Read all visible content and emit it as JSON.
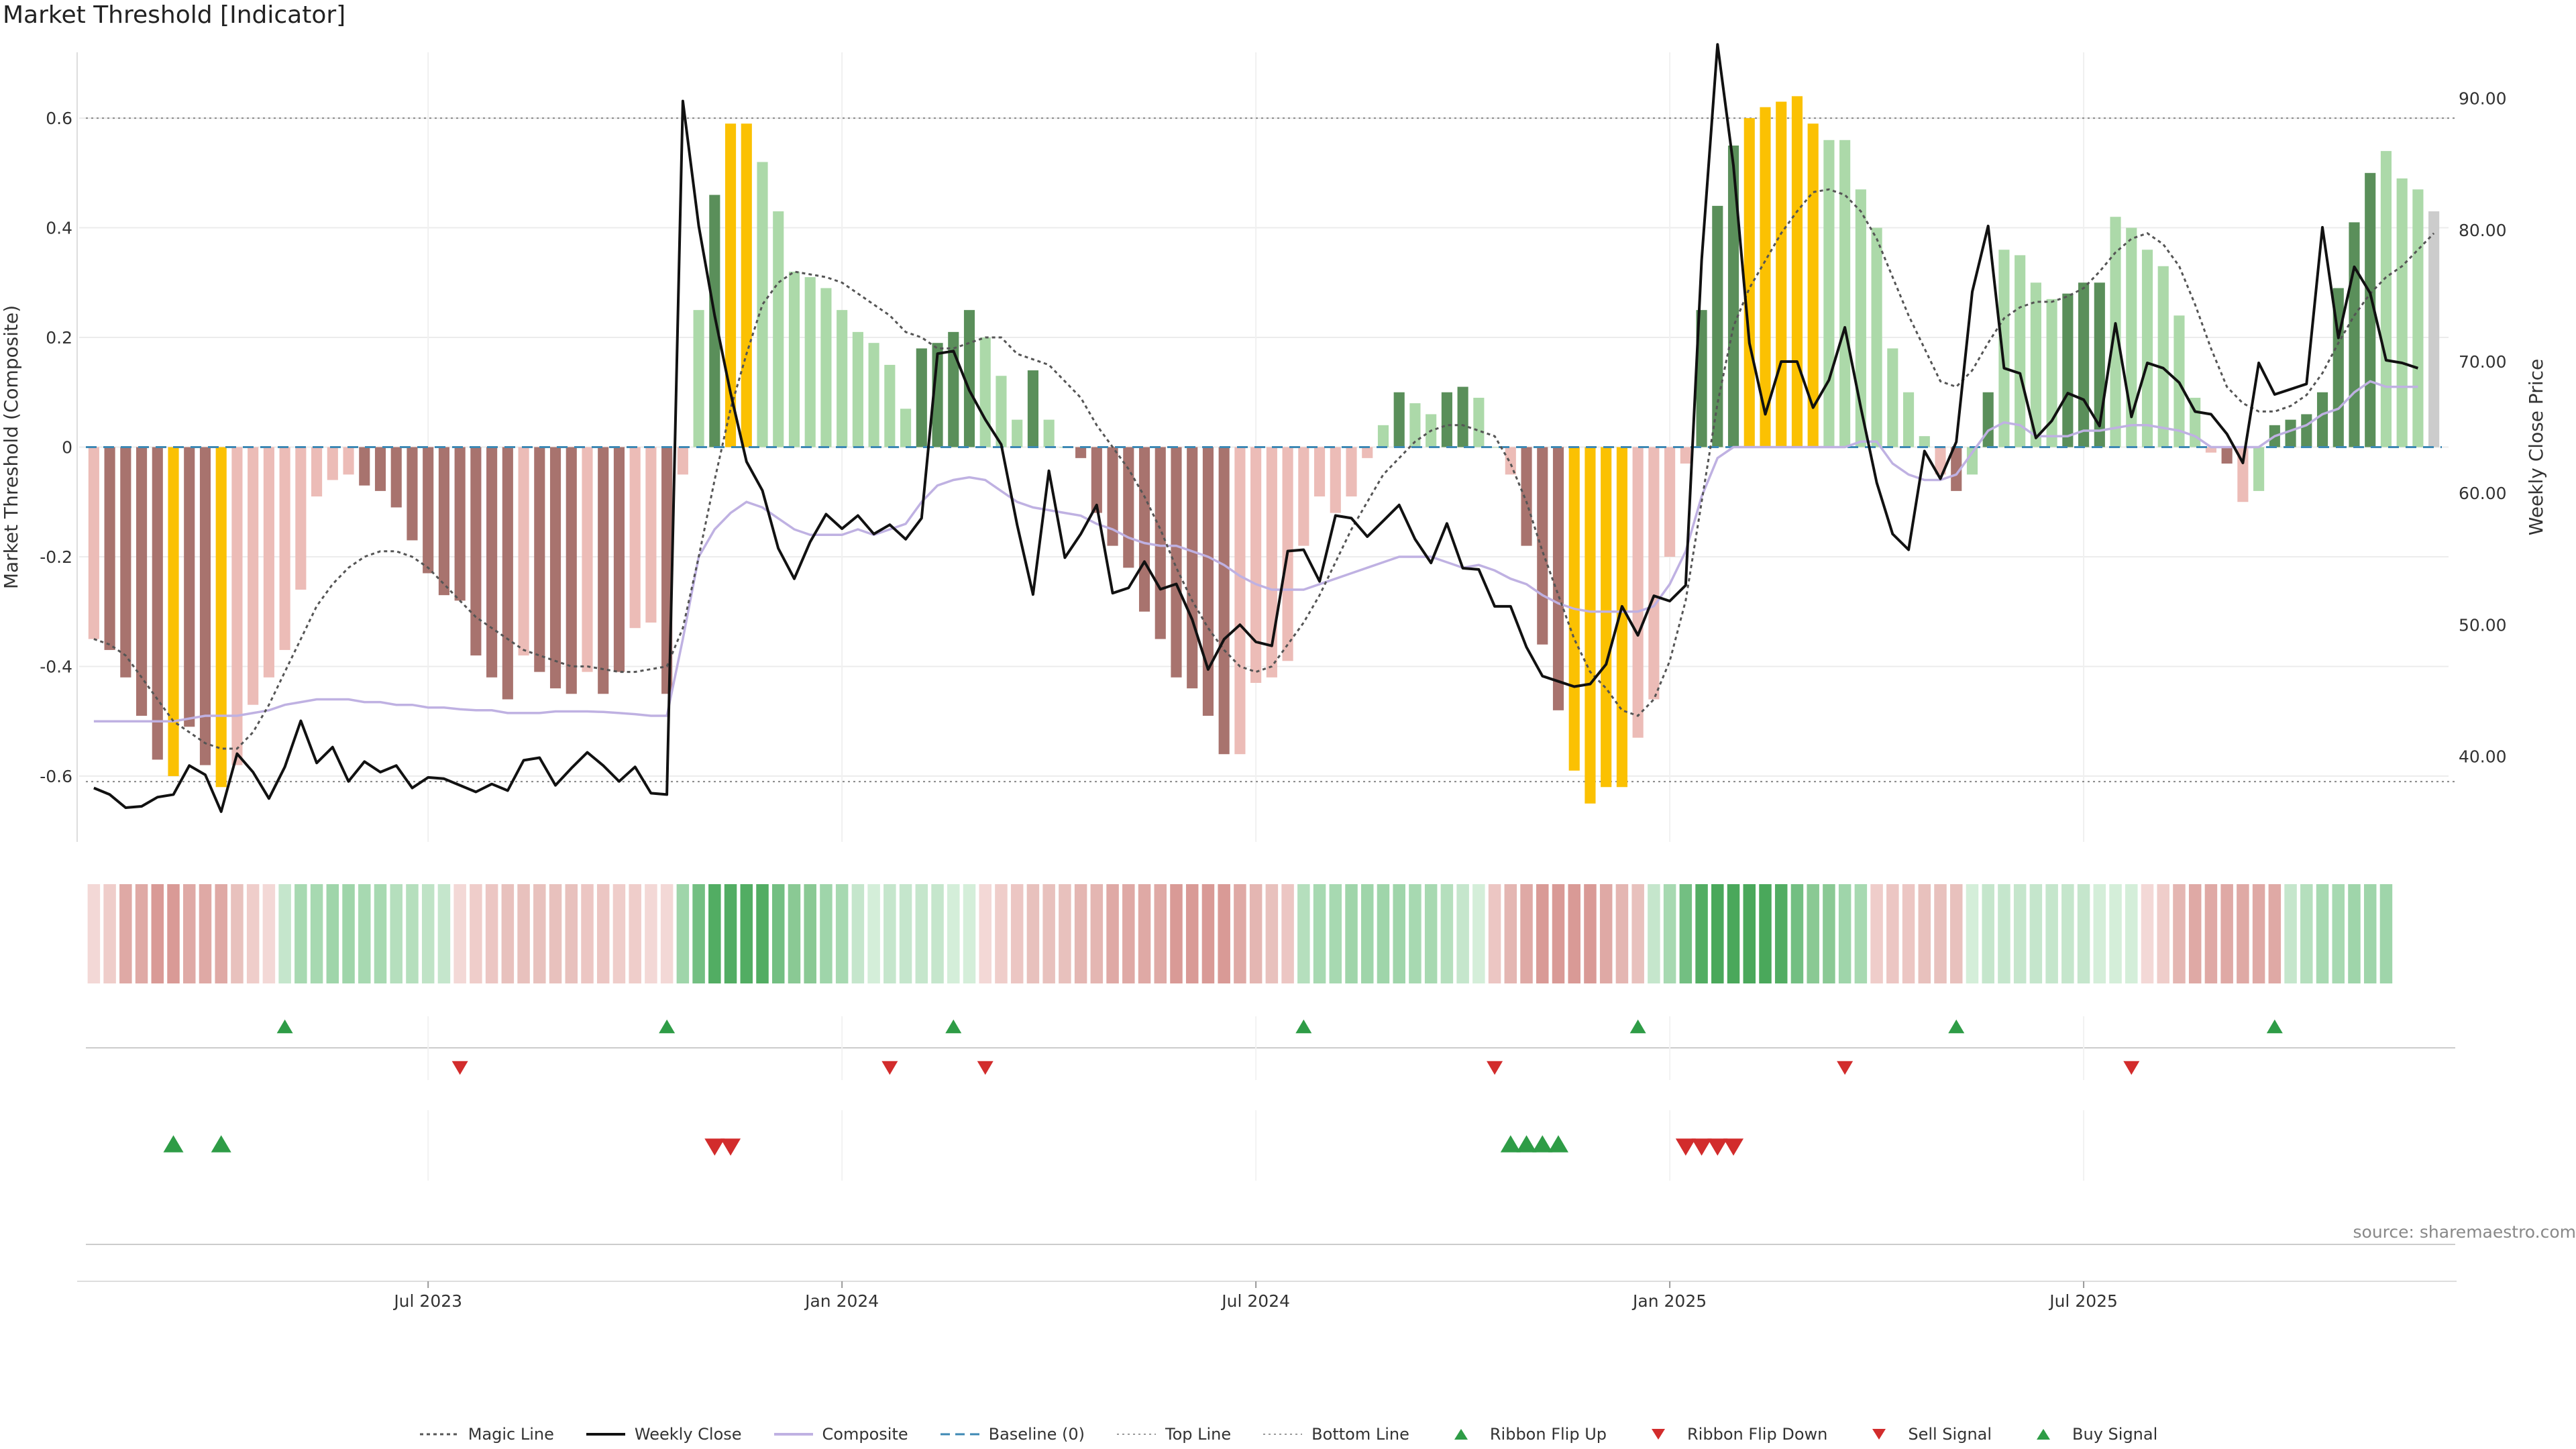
{
  "title": "Market Threshold [Indicator]",
  "source": "source: sharemaestro.com",
  "colors": {
    "dark_green": "#5a8f5a",
    "light_green": "#acd9a9",
    "dark_red": "#a8736e",
    "light_red": "#ecbcb7",
    "yellow": "#fbc102",
    "close": "#111111",
    "composite": "#bfb1e2",
    "magic": "#555555",
    "baseline": "#3d88b4",
    "up_marker": "#2e9c46",
    "down_marker": "#d22c2c"
  },
  "legend": [
    {
      "label": "Magic Line",
      "icon": "dotted-line"
    },
    {
      "label": "Weekly Close",
      "icon": "solid-black-line"
    },
    {
      "label": "Composite",
      "icon": "solid-lavender-line"
    },
    {
      "label": "Baseline (0)",
      "icon": "dashed-blue-line"
    },
    {
      "label": "Top Line",
      "icon": "dotted-gray-line"
    },
    {
      "label": "Bottom Line",
      "icon": "dotted-gray-line"
    },
    {
      "label": "Ribbon Flip Up",
      "icon": "green-up-triangle"
    },
    {
      "label": "Ribbon Flip Down",
      "icon": "red-down-triangle"
    },
    {
      "label": "Sell Signal",
      "icon": "red-down-triangle"
    },
    {
      "label": "Buy Signal",
      "icon": "green-up-triangle"
    }
  ],
  "chart_data": {
    "type": "bar",
    "ylabel": "Market Threshold (Composite)",
    "y2label": "Weekly Close Price",
    "ylim": [
      -0.72,
      0.72
    ],
    "y2lim": [
      33.5,
      93.5
    ],
    "yticks": [
      0.6,
      0.4,
      0.2,
      0,
      -0.2,
      -0.4,
      -0.6
    ],
    "ytick_labels": [
      "0.6",
      "0.4",
      "0.2",
      "0",
      "-0.2",
      "-0.4",
      "-0.6"
    ],
    "y2ticks": [
      90,
      80,
      70,
      60,
      50,
      40
    ],
    "y2tick_labels": [
      "90.00",
      "80.00",
      "70.00",
      "60.00",
      "50.00",
      "40.00"
    ],
    "xticks": [
      {
        "label": "Jul 2023",
        "week": 21.5
      },
      {
        "label": "Jan 2024",
        "week": 47.5
      },
      {
        "label": "Jul 2024",
        "week": 73.5
      },
      {
        "label": "Jan 2025",
        "week": 99.5
      },
      {
        "label": "Jul 2025",
        "week": 125.5
      }
    ],
    "top_line": 0.6,
    "bottom_line": -0.61,
    "grid": true,
    "legend_position": "bottom",
    "composite_bars": [
      -0.35,
      -0.37,
      -0.42,
      -0.49,
      -0.57,
      -0.6,
      -0.51,
      -0.58,
      -0.62,
      -0.58,
      -0.47,
      -0.42,
      -0.37,
      -0.26,
      -0.09,
      -0.06,
      -0.05,
      -0.07,
      -0.08,
      -0.11,
      -0.17,
      -0.23,
      -0.27,
      -0.28,
      -0.38,
      -0.42,
      -0.46,
      -0.38,
      -0.41,
      -0.44,
      -0.45,
      -0.41,
      -0.45,
      -0.41,
      -0.33,
      -0.32,
      -0.45,
      -0.05,
      0.25,
      0.46,
      0.59,
      0.59,
      0.52,
      0.43,
      0.32,
      0.31,
      0.29,
      0.25,
      0.21,
      0.19,
      0.15,
      0.07,
      0.18,
      0.19,
      0.21,
      0.25,
      0.2,
      0.13,
      0.05,
      0.14,
      0.05,
      0.0,
      -0.02,
      -0.12,
      -0.18,
      -0.22,
      -0.3,
      -0.35,
      -0.42,
      -0.44,
      -0.49,
      -0.56,
      -0.56,
      -0.43,
      -0.42,
      -0.39,
      -0.18,
      -0.09,
      -0.12,
      -0.09,
      -0.02,
      0.04,
      0.1,
      0.08,
      0.06,
      0.1,
      0.11,
      0.09,
      0.0,
      -0.05,
      -0.18,
      -0.36,
      -0.48,
      -0.59,
      -0.65,
      -0.62,
      -0.62,
      -0.53,
      -0.46,
      -0.2,
      -0.03,
      0.25,
      0.44,
      0.55,
      0.6,
      0.62,
      0.63,
      0.64,
      0.59,
      0.56,
      0.56,
      0.47,
      0.4,
      0.18,
      0.1,
      0.02,
      -0.05,
      -0.08,
      -0.05,
      0.1,
      0.36,
      0.35,
      0.3,
      0.27,
      0.28,
      0.3,
      0.3,
      0.42,
      0.4,
      0.36,
      0.33,
      0.24,
      0.09,
      -0.01,
      -0.03,
      -0.1,
      -0.08,
      0.04,
      0.05,
      0.06,
      0.1,
      0.29,
      0.41,
      0.5,
      0.54,
      0.49,
      0.47,
      0.43
    ],
    "bar_colors": [
      "light_red",
      "dark_red",
      "dark_red",
      "dark_red",
      "dark_red",
      "yellow",
      "dark_red",
      "dark_red",
      "yellow",
      "light_red",
      "light_red",
      "light_red",
      "light_red",
      "light_red",
      "light_red",
      "light_red",
      "light_red",
      "dark_red",
      "dark_red",
      "dark_red",
      "dark_red",
      "dark_red",
      "dark_red",
      "dark_red",
      "dark_red",
      "dark_red",
      "dark_red",
      "light_red",
      "dark_red",
      "dark_red",
      "dark_red",
      "light_red",
      "dark_red",
      "dark_red",
      "light_red",
      "light_red",
      "dark_red",
      "light_red",
      "light_green",
      "dark_green",
      "yellow",
      "yellow",
      "light_green",
      "light_green",
      "light_green",
      "light_green",
      "light_green",
      "light_green",
      "light_green",
      "light_green",
      "light_green",
      "light_green",
      "dark_green",
      "dark_green",
      "dark_green",
      "dark_green",
      "light_green",
      "light_green",
      "light_green",
      "dark_green",
      "light_green",
      "light_green",
      "dark_red",
      "dark_red",
      "dark_red",
      "dark_red",
      "dark_red",
      "dark_red",
      "dark_red",
      "dark_red",
      "dark_red",
      "dark_red",
      "light_red",
      "light_red",
      "light_red",
      "light_red",
      "light_red",
      "light_red",
      "light_red",
      "light_red",
      "light_red",
      "light_green",
      "dark_green",
      "light_green",
      "light_green",
      "dark_green",
      "dark_green",
      "light_green",
      "light_green",
      "light_red",
      "dark_red",
      "dark_red",
      "dark_red",
      "yellow",
      "yellow",
      "yellow",
      "yellow",
      "light_red",
      "light_red",
      "light_red",
      "light_red",
      "dark_green",
      "dark_green",
      "dark_green",
      "yellow",
      "yellow",
      "yellow",
      "yellow",
      "yellow",
      "light_green",
      "light_green",
      "light_green",
      "light_green",
      "light_green",
      "light_green",
      "light_green",
      "light_red",
      "dark_red",
      "light_green",
      "dark_green",
      "light_green",
      "light_green",
      "light_green",
      "light_green",
      "dark_green",
      "dark_green",
      "dark_green",
      "light_green",
      "light_green",
      "light_green",
      "light_green",
      "light_green",
      "light_green",
      "light_red",
      "dark_red",
      "light_red",
      "light_green",
      "dark_green",
      "dark_green",
      "dark_green",
      "dark_green",
      "dark_green",
      "dark_green",
      "dark_green",
      "light_green",
      "light_green",
      "light_green"
    ],
    "weekly_close": [
      37.6,
      37.1,
      36.1,
      36.2,
      36.9,
      37.1,
      39.3,
      38.6,
      35.8,
      40.2,
      38.8,
      36.8,
      39.2,
      42.7,
      39.5,
      40.7,
      38.1,
      39.6,
      38.8,
      39.3,
      37.6,
      38.4,
      38.3,
      37.8,
      37.3,
      37.9,
      37.4,
      39.7,
      39.9,
      37.8,
      39.1,
      40.3,
      39.3,
      38.1,
      39.2,
      37.2,
      37.1,
      89.8,
      80.3,
      73.5,
      67.6,
      62.4,
      60.2,
      55.8,
      53.5,
      56.3,
      58.4,
      57.3,
      58.3,
      56.9,
      57.6,
      56.5,
      58.1,
      70.6,
      70.8,
      67.8,
      65.6,
      63.7,
      57.6,
      52.3,
      61.7,
      55.1,
      56.9,
      59.1,
      52.4,
      52.8,
      54.8,
      52.7,
      53.1,
      50.4,
      46.6,
      48.9,
      50.0,
      48.7,
      48.4,
      55.6,
      55.7,
      53.3,
      58.3,
      58.1,
      56.7,
      57.9,
      59.1,
      56.5,
      54.7,
      57.7,
      54.3,
      54.2,
      51.4,
      51.4,
      48.3,
      46.1,
      45.7,
      45.3,
      45.5,
      47.0,
      51.4,
      49.2,
      52.2,
      51.8,
      53.0,
      77.7,
      94.1,
      84.9,
      71.4,
      66.0,
      70.0,
      70.0,
      66.5,
      68.6,
      72.6,
      66.5,
      60.8,
      56.9,
      55.7,
      63.2,
      61.1,
      63.9,
      75.3,
      80.3,
      69.5,
      69.1,
      64.2,
      65.5,
      67.6,
      67.1,
      65.1,
      72.9,
      65.8,
      69.9,
      69.5,
      68.4,
      66.2,
      66.0,
      64.5,
      62.3,
      69.9,
      67.5,
      67.9,
      68.3,
      80.2,
      71.8,
      77.2,
      75.2,
      70.1,
      69.9,
      69.5
    ],
    "composite_line": [
      -0.5,
      -0.5,
      -0.5,
      -0.5,
      -0.5,
      -0.5,
      -0.495,
      -0.49,
      -0.49,
      -0.49,
      -0.485,
      -0.48,
      -0.47,
      -0.465,
      -0.46,
      -0.46,
      -0.46,
      -0.465,
      -0.465,
      -0.47,
      -0.47,
      -0.475,
      -0.475,
      -0.478,
      -0.48,
      -0.48,
      -0.485,
      -0.485,
      -0.485,
      -0.482,
      -0.482,
      -0.482,
      -0.483,
      -0.485,
      -0.487,
      -0.49,
      -0.49,
      -0.35,
      -0.2,
      -0.15,
      -0.12,
      -0.1,
      -0.11,
      -0.13,
      -0.15,
      -0.16,
      -0.16,
      -0.16,
      -0.15,
      -0.16,
      -0.15,
      -0.14,
      -0.1,
      -0.07,
      -0.06,
      -0.055,
      -0.06,
      -0.08,
      -0.1,
      -0.11,
      -0.115,
      -0.12,
      -0.125,
      -0.14,
      -0.15,
      -0.165,
      -0.175,
      -0.18,
      -0.18,
      -0.19,
      -0.2,
      -0.215,
      -0.235,
      -0.25,
      -0.26,
      -0.26,
      -0.26,
      -0.25,
      -0.24,
      -0.23,
      -0.22,
      -0.21,
      -0.2,
      -0.2,
      -0.2,
      -0.21,
      -0.22,
      -0.215,
      -0.225,
      -0.24,
      -0.25,
      -0.27,
      -0.285,
      -0.295,
      -0.3,
      -0.3,
      -0.3,
      -0.3,
      -0.29,
      -0.25,
      -0.19,
      -0.09,
      -0.02,
      0.0,
      0.0,
      0.0,
      0.0,
      0.0,
      0.0,
      0.0,
      0.0,
      0.01,
      0.01,
      -0.03,
      -0.05,
      -0.06,
      -0.06,
      -0.05,
      -0.01,
      0.03,
      0.045,
      0.04,
      0.02,
      0.02,
      0.02,
      0.03,
      0.03,
      0.035,
      0.04,
      0.04,
      0.035,
      0.03,
      0.02,
      0.0,
      0.0,
      0.0,
      0.0,
      0.02,
      0.03,
      0.04,
      0.06,
      0.07,
      0.1,
      0.12,
      0.11,
      0.11,
      0.11
    ],
    "magic_line": [
      -0.35,
      -0.36,
      -0.38,
      -0.42,
      -0.46,
      -0.5,
      -0.52,
      -0.54,
      -0.55,
      -0.55,
      -0.52,
      -0.47,
      -0.41,
      -0.35,
      -0.29,
      -0.25,
      -0.22,
      -0.2,
      -0.19,
      -0.19,
      -0.2,
      -0.22,
      -0.25,
      -0.28,
      -0.31,
      -0.33,
      -0.35,
      -0.37,
      -0.38,
      -0.39,
      -0.4,
      -0.4,
      -0.405,
      -0.41,
      -0.41,
      -0.405,
      -0.4,
      -0.33,
      -0.2,
      -0.06,
      0.07,
      0.17,
      0.26,
      0.3,
      0.32,
      0.315,
      0.31,
      0.3,
      0.28,
      0.26,
      0.24,
      0.21,
      0.2,
      0.18,
      0.18,
      0.19,
      0.2,
      0.2,
      0.17,
      0.16,
      0.15,
      0.12,
      0.09,
      0.04,
      0.0,
      -0.04,
      -0.09,
      -0.15,
      -0.22,
      -0.28,
      -0.33,
      -0.37,
      -0.4,
      -0.41,
      -0.4,
      -0.36,
      -0.32,
      -0.27,
      -0.21,
      -0.15,
      -0.1,
      -0.05,
      -0.02,
      0.01,
      0.03,
      0.04,
      0.04,
      0.03,
      0.02,
      -0.03,
      -0.1,
      -0.19,
      -0.27,
      -0.35,
      -0.41,
      -0.44,
      -0.48,
      -0.49,
      -0.46,
      -0.39,
      -0.28,
      -0.1,
      0.08,
      0.22,
      0.29,
      0.34,
      0.39,
      0.43,
      0.465,
      0.47,
      0.46,
      0.43,
      0.38,
      0.31,
      0.24,
      0.18,
      0.12,
      0.11,
      0.14,
      0.19,
      0.235,
      0.255,
      0.265,
      0.265,
      0.275,
      0.29,
      0.32,
      0.355,
      0.38,
      0.39,
      0.37,
      0.33,
      0.26,
      0.18,
      0.11,
      0.08,
      0.065,
      0.065,
      0.075,
      0.095,
      0.135,
      0.19,
      0.24,
      0.28,
      0.31,
      0.33,
      0.36,
      0.39
    ],
    "ribbon_colors": [
      "#f3d8d6",
      "#efcdca",
      "#dfa9a5",
      "#dfa9a5",
      "#d99a96",
      "#d99a96",
      "#dfa9a5",
      "#dfa9a5",
      "#dfa9a5",
      "#e8c1bd",
      "#efcdca",
      "#f3d8d6",
      "#c5e6cc",
      "#a7d9b1",
      "#a7d9b1",
      "#9fd5aa",
      "#9fd5aa",
      "#a7d9b1",
      "#a7d9b1",
      "#b5dfbd",
      "#b5dfbd",
      "#bfe3c6",
      "#c5e6cc",
      "#f3d8d6",
      "#efcdca",
      "#ecc6c3",
      "#e8c1bd",
      "#e8c1bd",
      "#e8c1bd",
      "#e8c1bd",
      "#e8c1bd",
      "#ecc6c3",
      "#ecc6c3",
      "#efcdca",
      "#efcdca",
      "#f3d8d6",
      "#f3d8d6",
      "#9fd5aa",
      "#73bf82",
      "#52ad63",
      "#52ad63",
      "#52ad63",
      "#52ad63",
      "#73bf82",
      "#8ac994",
      "#8ac994",
      "#9fd5aa",
      "#a7d9b1",
      "#c5e6cc",
      "#d4eed9",
      "#c5e6cc",
      "#c5e6cc",
      "#c5e6cc",
      "#c5e6cc",
      "#d4eed9",
      "#d4eed9",
      "#f3d8d6",
      "#efcdca",
      "#ecc6c3",
      "#e8c1bd",
      "#e8c1bd",
      "#e8c1bd",
      "#e4b6b2",
      "#e4b6b2",
      "#dfa9a5",
      "#dfa9a5",
      "#dfa9a5",
      "#dfa9a5",
      "#d99a96",
      "#d99a96",
      "#d99a96",
      "#d99a96",
      "#dfa9a5",
      "#e4b6b2",
      "#e8c1bd",
      "#ecc6c3",
      "#b5dfbd",
      "#a7d9b1",
      "#a7d9b1",
      "#9fd5aa",
      "#9fd5aa",
      "#9fd5aa",
      "#9fd5aa",
      "#a7d9b1",
      "#a7d9b1",
      "#b5dfbd",
      "#c5e6cc",
      "#d4eed9",
      "#ecc6c3",
      "#e4b6b2",
      "#dfa9a5",
      "#d99a96",
      "#d99a96",
      "#d99a96",
      "#d99a96",
      "#dfa9a5",
      "#e4b6b2",
      "#e8c1bd",
      "#c5e6cc",
      "#a7d9b1",
      "#73bf82",
      "#52ad63",
      "#4aa85b",
      "#4aa85b",
      "#4aa85b",
      "#4aa85b",
      "#52ad63",
      "#73bf82",
      "#8ac994",
      "#8ac994",
      "#9fd5aa",
      "#a7d9b1",
      "#efcdca",
      "#ecc6c3",
      "#ecc6c3",
      "#e8c1bd",
      "#e8c1bd",
      "#e8c1bd",
      "#d4eed9",
      "#c5e6cc",
      "#c5e6cc",
      "#c5e6cc",
      "#c5e6cc",
      "#c5e6cc",
      "#c5e6cc",
      "#c5e6cc",
      "#d4eed9",
      "#d4eed9",
      "#d4eed9",
      "#f3d8d6",
      "#efcdca",
      "#e4b6b2",
      "#dfa9a5",
      "#dfa9a5",
      "#dfa9a5",
      "#dfa9a5",
      "#dfa9a5",
      "#dfa9a5",
      "#c5e6cc",
      "#b5dfbd",
      "#a7d9b1",
      "#a7d9b1",
      "#9fd5aa",
      "#9fd5aa",
      "#9fd5aa"
    ],
    "ribbon_flip_up_weeks": [
      12,
      36,
      54,
      76,
      97,
      117,
      137
    ],
    "ribbon_flip_down_weeks": [
      23,
      50,
      56,
      88,
      110,
      128
    ],
    "buy_signal_weeks": [
      5,
      8,
      89,
      90,
      91,
      92
    ],
    "sell_signal_weeks": [
      39,
      40,
      100,
      101,
      102,
      103
    ]
  }
}
